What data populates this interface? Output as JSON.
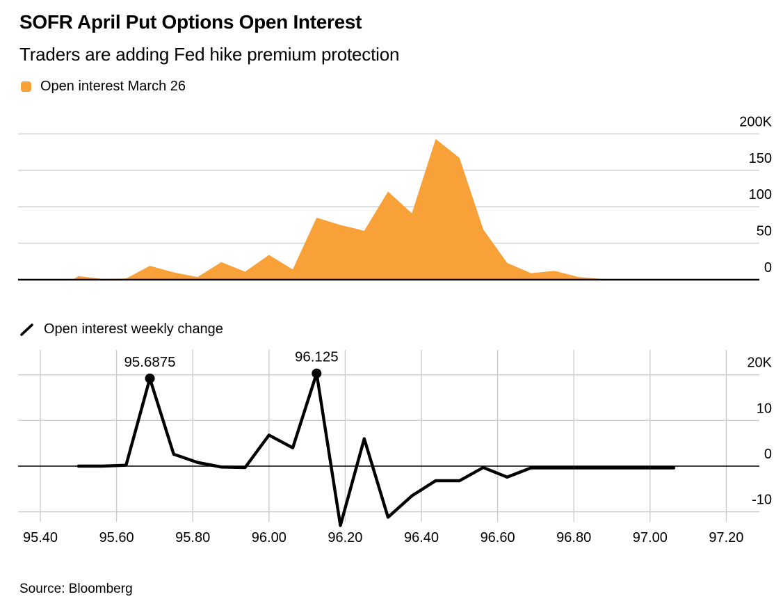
{
  "header": {
    "title": "SOFR April Put Options Open Interest",
    "subtitle": "Traders are adding Fed hike premium protection"
  },
  "source_note": "Source: Bloomberg",
  "colors": {
    "accent_orange": "#F8A139",
    "line_black": "#000000",
    "grid_gray_top": "#D9D9D9",
    "grid_gray_bottom": "#CCCCCC",
    "background": "#FFFFFF"
  },
  "chart_data": [
    {
      "type": "area",
      "legend": "Open interest March 26",
      "legend_icon": "orange-rounded-square",
      "x": [
        95.5,
        95.5625,
        95.625,
        95.6875,
        95.75,
        95.8125,
        95.875,
        95.9375,
        96.0,
        96.0625,
        96.125,
        96.1875,
        96.25,
        96.3125,
        96.375,
        96.4375,
        96.5,
        96.5625,
        96.625,
        96.6875,
        96.75,
        96.8125,
        96.875,
        96.9375,
        97.0,
        97.0625
      ],
      "values": [
        5,
        1,
        1.5,
        19,
        10,
        3.5,
        24,
        11,
        34,
        14,
        85,
        75,
        67,
        121,
        91,
        193,
        167,
        69,
        23,
        9,
        12,
        3.5,
        1,
        0.5,
        0.3,
        0.2
      ],
      "units": "K",
      "ylim": [
        0,
        220
      ],
      "yticks": [
        0,
        50,
        100,
        150,
        200
      ],
      "ytick_labels": [
        "0",
        "50",
        "100",
        "150",
        "200K"
      ],
      "ytick_side": "right",
      "grid": "horizontal",
      "xlabel": "",
      "ylabel": ""
    },
    {
      "type": "line",
      "legend": "Open interest weekly change",
      "legend_icon": "black-diagonal-line",
      "x": [
        95.5,
        95.5625,
        95.625,
        95.6875,
        95.75,
        95.8125,
        95.875,
        95.9375,
        96.0,
        96.0625,
        96.125,
        96.1875,
        96.25,
        96.3125,
        96.375,
        96.4375,
        96.5,
        96.5625,
        96.625,
        96.6875,
        96.75,
        96.8125,
        96.875,
        96.9375,
        97.0,
        97.0625
      ],
      "values": [
        0,
        0,
        0.2,
        19.2,
        2.6,
        0.8,
        -0.2,
        -0.3,
        6.8,
        4.0,
        20.3,
        -13,
        6.0,
        -11.2,
        -6.5,
        -3.2,
        -3.2,
        -0.3,
        -2.4,
        -0.4,
        -0.4,
        -0.4,
        -0.4,
        -0.4,
        -0.4,
        -0.4
      ],
      "units": "K",
      "ylim": [
        -13.5,
        25.5
      ],
      "yticks": [
        -10,
        0,
        10,
        20
      ],
      "ytick_labels": [
        "-10",
        "0",
        "10",
        "20K"
      ],
      "ytick_side": "right",
      "xlim": [
        95.34,
        97.29
      ],
      "xticks": [
        95.4,
        95.6,
        95.8,
        96.0,
        96.2,
        96.4,
        96.6,
        96.8,
        97.0,
        97.2
      ],
      "xtick_labels": [
        "95.40",
        "95.60",
        "95.80",
        "96.00",
        "96.20",
        "96.40",
        "96.60",
        "96.80",
        "97.00",
        "97.20"
      ],
      "grid": "both",
      "annotations": [
        {
          "x": 95.6875,
          "y": 19.2,
          "label": "95.6875"
        },
        {
          "x": 96.125,
          "y": 20.3,
          "label": "96.125"
        }
      ],
      "xlabel": "",
      "ylabel": ""
    }
  ]
}
